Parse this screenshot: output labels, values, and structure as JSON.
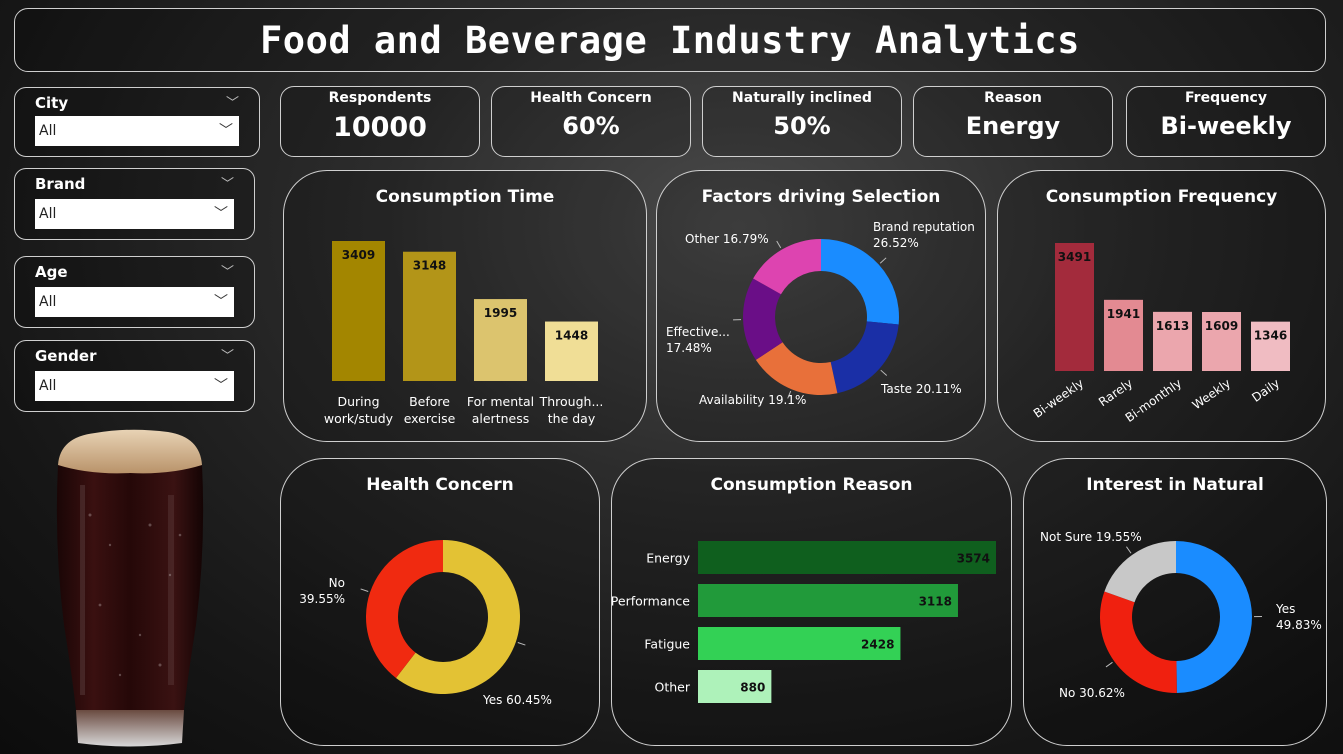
{
  "header": {
    "title": "Food and Beverage Industry Analytics"
  },
  "filters": [
    {
      "label": "City",
      "value": "All"
    },
    {
      "label": "Brand",
      "value": "All"
    },
    {
      "label": "Age",
      "value": "All"
    },
    {
      "label": "Gender",
      "value": "All"
    }
  ],
  "kpis": [
    {
      "label": "Respondents",
      "value": "10000"
    },
    {
      "label": "Health Concern",
      "value": "60%"
    },
    {
      "label": "Naturally inclined",
      "value": "50%"
    },
    {
      "label": "Reason",
      "value": "Energy"
    },
    {
      "label": "Frequency",
      "value": "Bi-weekly"
    }
  ],
  "chart_data": [
    {
      "id": "consumption_time",
      "type": "bar",
      "title": "Consumption Time",
      "categories": [
        "During work/study",
        "Before exercise",
        "For mental alertness",
        "Through... the day"
      ],
      "category_lines": [
        [
          "During",
          "work/study"
        ],
        [
          "Before",
          "exercise"
        ],
        [
          "For mental",
          "alertness"
        ],
        [
          "Through...",
          "the day"
        ]
      ],
      "values": [
        3409,
        3148,
        1995,
        1448
      ],
      "colors": [
        "#a38600",
        "#b39518",
        "#dcc46e",
        "#f0de96"
      ]
    },
    {
      "id": "factors_selection",
      "type": "pie",
      "title": "Factors driving Selection",
      "categories": [
        "Brand reputation",
        "Taste",
        "Availability",
        "Effective...",
        "Other"
      ],
      "values": [
        26.52,
        20.11,
        19.1,
        17.48,
        16.79
      ],
      "labels": [
        "26.52%",
        "20.11%",
        "19.1%",
        "17.48%",
        "16.79%"
      ],
      "colors": [
        "#1a8cff",
        "#1a2fa6",
        "#e8703a",
        "#6a0e87",
        "#dd44b0"
      ]
    },
    {
      "id": "consumption_frequency",
      "type": "bar",
      "title": "Consumption Frequency",
      "categories": [
        "Bi-weekly",
        "Rarely",
        "Bi-monthly",
        "Weekly",
        "Daily"
      ],
      "values": [
        3491,
        1941,
        1613,
        1609,
        1346
      ],
      "colors": [
        "#a32b3c",
        "#e38a92",
        "#eba6ad",
        "#eba6ad",
        "#f0bcc2"
      ]
    },
    {
      "id": "health_concern",
      "type": "pie",
      "title": "Health Concern",
      "categories": [
        "Yes",
        "No"
      ],
      "values": [
        60.45,
        39.55
      ],
      "labels": [
        "60.45%",
        "39.55%"
      ],
      "colors": [
        "#e3c234",
        "#f02a10"
      ]
    },
    {
      "id": "consumption_reason",
      "type": "bar",
      "orientation": "horizontal",
      "title": "Consumption Reason",
      "categories": [
        "Energy",
        "Performance",
        "Fatigue",
        "Other"
      ],
      "values": [
        3574,
        3118,
        2428,
        880
      ],
      "colors": [
        "#0f5f1e",
        "#219a3a",
        "#33d155",
        "#aef2ba"
      ]
    },
    {
      "id": "interest_natural",
      "type": "pie",
      "title": "Interest in Natural",
      "categories": [
        "Yes",
        "No",
        "Not Sure"
      ],
      "values": [
        49.83,
        30.62,
        19.55
      ],
      "labels": [
        "49.83%",
        "30.62%",
        "19.55%"
      ],
      "colors": [
        "#1a8cff",
        "#f0200f",
        "#c8c8c8"
      ]
    }
  ],
  "icons": {
    "dropdown": "chevron-down-icon",
    "image": "beer-glass-image"
  }
}
